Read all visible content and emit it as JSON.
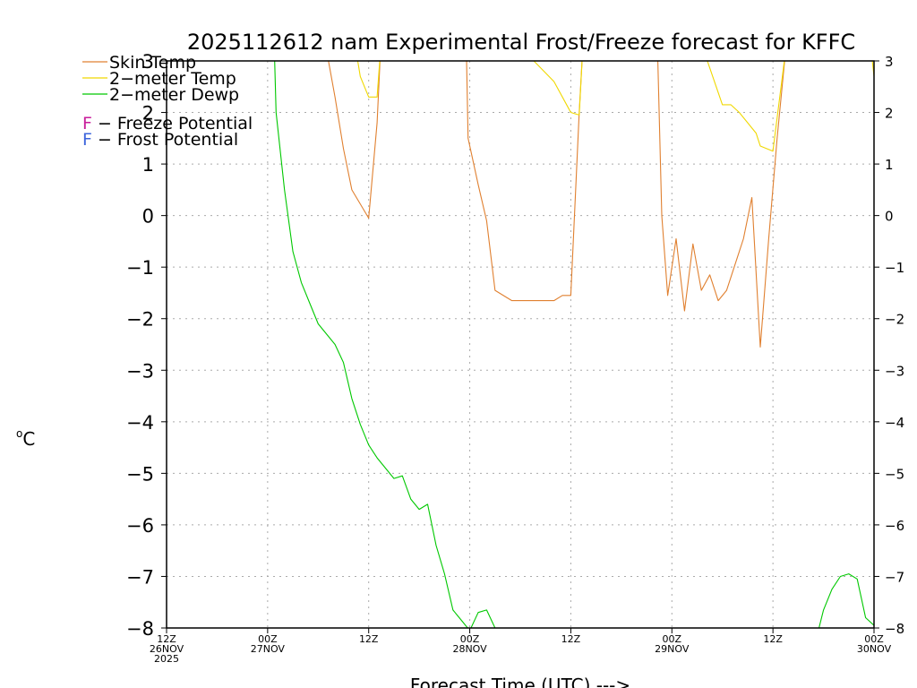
{
  "chart_data": {
    "type": "line",
    "title": "2025112612 nam Experimental Frost/Freeze forecast for KFFC",
    "ylabel": "°C",
    "ylabel_base": "o",
    "ylabel_unit": "C",
    "xlabel": "Forecast Time (UTC) --->",
    "ylim": [
      -8,
      3
    ],
    "xlim": [
      0,
      84
    ],
    "yticks": [
      -8,
      -7,
      -6,
      -5,
      -4,
      -3,
      -2,
      -1,
      0,
      1,
      2,
      3
    ],
    "ytick_labels": [
      "−8",
      "−7",
      "−6",
      "−5",
      "−4",
      "−3",
      "−2",
      "−1",
      "0",
      "1",
      "2",
      "3"
    ],
    "grid": true,
    "legend": "top-left",
    "xticks": [
      {
        "x": 0,
        "lines": [
          "12Z",
          "26NOV",
          "2025"
        ]
      },
      {
        "x": 12,
        "lines": [
          "00Z",
          "27NOV"
        ]
      },
      {
        "x": 24,
        "lines": [
          "12Z"
        ]
      },
      {
        "x": 36,
        "lines": [
          "00Z",
          "28NOV"
        ]
      },
      {
        "x": 48,
        "lines": [
          "12Z"
        ]
      },
      {
        "x": 60,
        "lines": [
          "00Z",
          "29NOV"
        ]
      },
      {
        "x": 72,
        "lines": [
          "12Z"
        ]
      },
      {
        "x": 84,
        "lines": [
          "00Z",
          "30NOV"
        ]
      }
    ],
    "series": [
      {
        "name": "Skin Temp",
        "legend_label": "Skin Temp",
        "color": "#e08030",
        "points": [
          [
            19,
            3.2
          ],
          [
            20,
            2.3
          ],
          [
            21,
            1.3
          ],
          [
            22,
            0.5
          ],
          [
            24,
            -0.05
          ],
          [
            25,
            1.8
          ],
          [
            25.4,
            3.2
          ],
          [
            35.6,
            3.2
          ],
          [
            35.8,
            1.5
          ],
          [
            37,
            0.6
          ],
          [
            38,
            -0.1
          ],
          [
            39,
            -1.45
          ],
          [
            41,
            -1.65
          ],
          [
            43,
            -1.65
          ],
          [
            45,
            -1.65
          ],
          [
            46,
            -1.65
          ],
          [
            47,
            -1.55
          ],
          [
            48,
            -1.55
          ],
          [
            49,
            2.0
          ],
          [
            49.4,
            3.2
          ],
          [
            58.3,
            3.2
          ],
          [
            58.8,
            0.0
          ],
          [
            59.5,
            -1.55
          ],
          [
            60.5,
            -0.45
          ],
          [
            61.5,
            -1.85
          ],
          [
            62.5,
            -0.55
          ],
          [
            63.5,
            -1.45
          ],
          [
            64.5,
            -1.15
          ],
          [
            65.5,
            -1.65
          ],
          [
            66.5,
            -1.45
          ],
          [
            67.5,
            -0.95
          ],
          [
            68.5,
            -0.45
          ],
          [
            69.5,
            0.35
          ],
          [
            70.5,
            -2.55
          ],
          [
            71.5,
            -0.45
          ],
          [
            72.5,
            1.5
          ],
          [
            73.5,
            3.2
          ]
        ]
      },
      {
        "name": "2-meter Temp",
        "legend_label": "2−meter Temp",
        "color": "#f0d800",
        "points": [
          [
            22.5,
            3.2
          ],
          [
            23,
            2.7
          ],
          [
            24,
            2.3
          ],
          [
            25,
            2.3
          ],
          [
            25.4,
            3.2
          ],
          [
            43,
            3.1
          ],
          [
            46,
            2.6
          ],
          [
            48,
            2.0
          ],
          [
            49,
            1.95
          ],
          [
            49.4,
            3.2
          ],
          [
            64,
            3.1
          ],
          [
            66,
            2.15
          ],
          [
            67,
            2.15
          ],
          [
            68,
            2.0
          ],
          [
            70,
            1.6
          ],
          [
            70.5,
            1.35
          ],
          [
            72,
            1.25
          ],
          [
            73.5,
            3.2
          ],
          [
            83.8,
            3.0
          ],
          [
            84,
            2.7
          ]
        ]
      },
      {
        "name": "2-meter Dewp",
        "legend_label": "2−meter Dewp",
        "color": "#00c800",
        "points": [
          [
            12.8,
            3.2
          ],
          [
            13,
            2.0
          ],
          [
            14,
            0.5
          ],
          [
            15,
            -0.7
          ],
          [
            16,
            -1.3
          ],
          [
            17,
            -1.7
          ],
          [
            18,
            -2.1
          ],
          [
            19,
            -2.3
          ],
          [
            20,
            -2.5
          ],
          [
            21,
            -2.85
          ],
          [
            22,
            -3.55
          ],
          [
            23,
            -4.05
          ],
          [
            24,
            -4.45
          ],
          [
            25,
            -4.7
          ],
          [
            26,
            -4.9
          ],
          [
            27,
            -5.1
          ],
          [
            28,
            -5.05
          ],
          [
            29,
            -5.5
          ],
          [
            30,
            -5.7
          ],
          [
            31,
            -5.6
          ],
          [
            32,
            -6.4
          ],
          [
            33,
            -6.95
          ],
          [
            34,
            -7.65
          ],
          [
            35,
            -7.85
          ],
          [
            36,
            -8.05
          ],
          [
            37,
            -7.7
          ],
          [
            38,
            -7.65
          ],
          [
            39,
            -8.0
          ],
          [
            41,
            -8.2
          ],
          [
            77,
            -8.3
          ],
          [
            78,
            -7.65
          ],
          [
            79,
            -7.25
          ],
          [
            80,
            -7.0
          ],
          [
            81,
            -6.95
          ],
          [
            82,
            -7.05
          ],
          [
            83,
            -7.8
          ],
          [
            84,
            -7.95
          ]
        ]
      }
    ],
    "annotations": [
      {
        "marker": "F",
        "marker_color": "#c81e9b",
        "text": " − Freeze Potential"
      },
      {
        "marker": "F",
        "marker_color": "#3c64dc",
        "text": " − Frost Potential"
      }
    ]
  }
}
